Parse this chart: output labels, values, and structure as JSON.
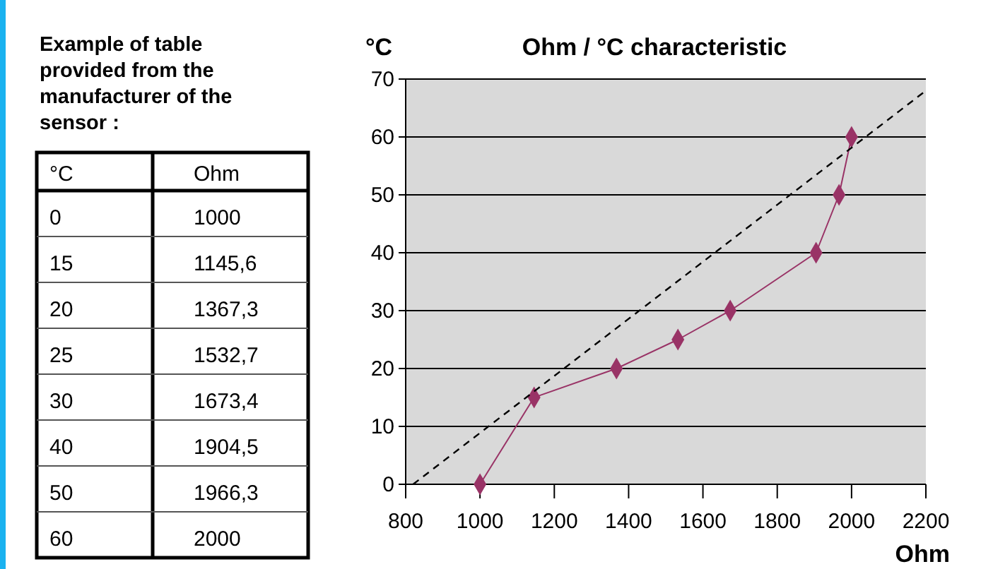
{
  "chart_data": [
    {
      "type": "other",
      "title": "Example of table provided from the manufacturer of the sensor :",
      "annotations": [
        "°C",
        "Ohm",
        "0",
        "1000",
        "15",
        "1145,6",
        "20",
        "1367,3",
        "25",
        "1532,7",
        "30",
        "1673,4",
        "40",
        "1904,5",
        "50",
        "1966,3",
        "60",
        "2000"
      ]
    },
    {
      "type": "line",
      "title": "Ohm / °C characteristic",
      "xlabel": "Ohm",
      "ylabel": "°C",
      "x": [
        1000,
        1145.6,
        1367.3,
        1532.7,
        1673.4,
        1904.5,
        1966.3,
        2000
      ],
      "series": [
        {
          "color": "#993366",
          "values": [
            0,
            15,
            20,
            25,
            30,
            40,
            50,
            60
          ],
          "marker": "diamond",
          "line_style": "solid"
        },
        {
          "type": "line",
          "color": "#000000",
          "x": [
            820,
            2200
          ],
          "values": [
            0,
            68
          ],
          "marker": "none",
          "line_style": "dashed"
        }
      ],
      "xlim": [
        800,
        2200
      ],
      "xticks": [
        800,
        1000,
        1200,
        1400,
        1600,
        1800,
        2000,
        2200
      ],
      "ylim": [
        0,
        70
      ],
      "yticks": [
        0,
        10,
        20,
        30,
        40,
        50,
        60,
        70
      ],
      "grid": "y"
    }
  ]
}
